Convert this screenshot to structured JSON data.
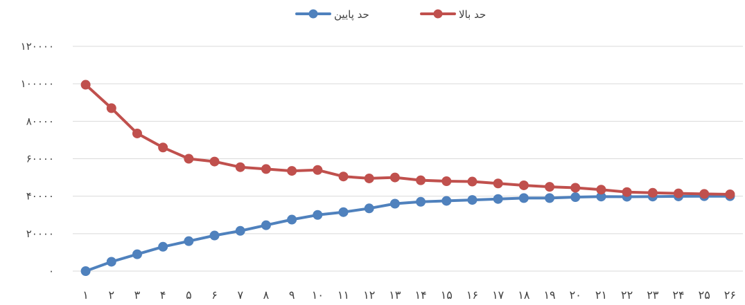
{
  "chart_data": {
    "type": "line",
    "title": "",
    "xlabel": "",
    "ylabel": "",
    "ylim": [
      0,
      120000
    ],
    "yticks": [
      0,
      20000,
      40000,
      60000,
      80000,
      100000,
      120000
    ],
    "ytick_labels": [
      "۰",
      "۲۰۰۰۰",
      "۴۰۰۰۰",
      "۶۰۰۰۰",
      "۸۰۰۰۰",
      "۱۰۰۰۰۰",
      "۱۲۰۰۰۰"
    ],
    "categories": [
      "۱",
      "۲",
      "۳",
      "۴",
      "۵",
      "۶",
      "۷",
      "۸",
      "۹",
      "۱۰",
      "۱۱",
      "۱۲",
      "۱۳",
      "۱۴",
      "۱۵",
      "۱۶",
      "۱۷",
      "۱۸",
      "۱۹",
      "۲۰",
      "۲۱",
      "۲۲",
      "۲۳",
      "۲۴",
      "۲۵",
      "۲۶"
    ],
    "grid": true,
    "legend_position": "top",
    "series": [
      {
        "name": "حد پایین",
        "color": "#4f81bd",
        "values": [
          0,
          5000,
          9000,
          13000,
          16000,
          19000,
          21500,
          24500,
          27500,
          30000,
          31500,
          33500,
          36000,
          37000,
          37500,
          38000,
          38500,
          39000,
          39000,
          39500,
          39800,
          39700,
          39800,
          39900,
          40000,
          40000
        ]
      },
      {
        "name": "حد بالا",
        "color": "#c0504d",
        "values": [
          99500,
          87000,
          73500,
          66000,
          60000,
          58500,
          55500,
          54500,
          53500,
          54000,
          50500,
          49500,
          50000,
          48500,
          48000,
          47800,
          46800,
          45800,
          45000,
          44500,
          43500,
          42200,
          41800,
          41500,
          41200,
          41000
        ]
      }
    ]
  }
}
